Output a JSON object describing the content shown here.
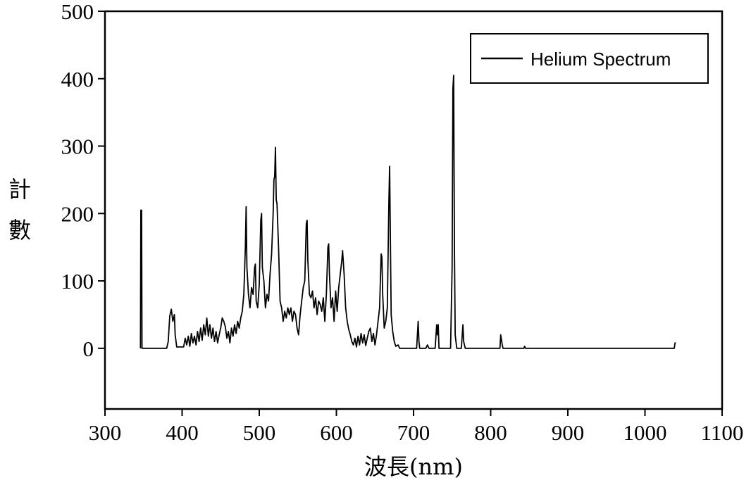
{
  "chart_data": {
    "type": "line",
    "title": "",
    "xlabel": "波長(nm)",
    "ylabel": "計數",
    "xlim": [
      300,
      1100
    ],
    "ylim": [
      -90,
      500
    ],
    "xticks": [
      300,
      400,
      500,
      600,
      700,
      800,
      900,
      1000,
      1100
    ],
    "xtick_labels": [
      "300",
      "400",
      "500",
      "600",
      "700",
      "800",
      "900",
      "1000",
      "1100"
    ],
    "yticks": [
      0,
      100,
      200,
      300,
      400,
      500
    ],
    "ytick_labels": [
      "0",
      "100",
      "200",
      "300",
      "400",
      "500"
    ],
    "grid": false,
    "legend_position": "top-right",
    "series": [
      {
        "name": "Helium Spectrum",
        "color": "#000000",
        "points": [
          [
            346,
            0
          ],
          [
            346.5,
            205
          ],
          [
            347.5,
            205
          ],
          [
            348,
            0
          ],
          [
            380,
            0
          ],
          [
            382,
            10
          ],
          [
            384,
            48
          ],
          [
            386,
            58
          ],
          [
            388,
            40
          ],
          [
            390,
            50
          ],
          [
            391,
            20
          ],
          [
            393,
            2
          ],
          [
            402,
            2
          ],
          [
            404,
            15
          ],
          [
            406,
            5
          ],
          [
            408,
            18
          ],
          [
            410,
            3
          ],
          [
            412,
            22
          ],
          [
            414,
            8
          ],
          [
            416,
            18
          ],
          [
            418,
            5
          ],
          [
            420,
            25
          ],
          [
            422,
            10
          ],
          [
            424,
            30
          ],
          [
            426,
            12
          ],
          [
            428,
            35
          ],
          [
            430,
            20
          ],
          [
            432,
            45
          ],
          [
            434,
            18
          ],
          [
            436,
            35
          ],
          [
            438,
            15
          ],
          [
            440,
            30
          ],
          [
            442,
            10
          ],
          [
            444,
            25
          ],
          [
            446,
            8
          ],
          [
            448,
            20
          ],
          [
            450,
            30
          ],
          [
            452,
            45
          ],
          [
            454,
            40
          ],
          [
            456,
            32
          ],
          [
            458,
            15
          ],
          [
            460,
            25
          ],
          [
            462,
            8
          ],
          [
            464,
            30
          ],
          [
            466,
            18
          ],
          [
            468,
            35
          ],
          [
            470,
            22
          ],
          [
            472,
            40
          ],
          [
            474,
            30
          ],
          [
            476,
            45
          ],
          [
            478,
            55
          ],
          [
            480,
            80
          ],
          [
            482,
            150
          ],
          [
            483,
            210
          ],
          [
            484,
            120
          ],
          [
            486,
            80
          ],
          [
            488,
            60
          ],
          [
            490,
            90
          ],
          [
            492,
            80
          ],
          [
            494,
            120
          ],
          [
            495,
            125
          ],
          [
            496,
            70
          ],
          [
            498,
            60
          ],
          [
            500,
            95
          ],
          [
            502,
            190
          ],
          [
            503,
            200
          ],
          [
            504,
            120
          ],
          [
            506,
            100
          ],
          [
            508,
            60
          ],
          [
            510,
            80
          ],
          [
            512,
            70
          ],
          [
            514,
            110
          ],
          [
            516,
            140
          ],
          [
            518,
            200
          ],
          [
            519,
            250
          ],
          [
            520,
            255
          ],
          [
            521,
            298
          ],
          [
            522,
            220
          ],
          [
            523,
            215
          ],
          [
            525,
            150
          ],
          [
            527,
            70
          ],
          [
            529,
            60
          ],
          [
            531,
            40
          ],
          [
            533,
            55
          ],
          [
            535,
            45
          ],
          [
            537,
            60
          ],
          [
            539,
            50
          ],
          [
            541,
            60
          ],
          [
            543,
            40
          ],
          [
            545,
            55
          ],
          [
            547,
            50
          ],
          [
            549,
            30
          ],
          [
            551,
            20
          ],
          [
            553,
            50
          ],
          [
            555,
            70
          ],
          [
            557,
            90
          ],
          [
            559,
            100
          ],
          [
            561,
            185
          ],
          [
            562,
            190
          ],
          [
            563,
            130
          ],
          [
            565,
            80
          ],
          [
            567,
            75
          ],
          [
            569,
            85
          ],
          [
            571,
            60
          ],
          [
            573,
            75
          ],
          [
            575,
            50
          ],
          [
            577,
            70
          ],
          [
            579,
            65
          ],
          [
            581,
            55
          ],
          [
            583,
            75
          ],
          [
            585,
            40
          ],
          [
            587,
            80
          ],
          [
            589,
            150
          ],
          [
            590,
            155
          ],
          [
            591,
            110
          ],
          [
            593,
            60
          ],
          [
            595,
            75
          ],
          [
            597,
            40
          ],
          [
            599,
            85
          ],
          [
            601,
            55
          ],
          [
            603,
            90
          ],
          [
            605,
            110
          ],
          [
            607,
            130
          ],
          [
            608,
            145
          ],
          [
            610,
            110
          ],
          [
            612,
            60
          ],
          [
            614,
            40
          ],
          [
            616,
            28
          ],
          [
            618,
            20
          ],
          [
            620,
            10
          ],
          [
            622,
            5
          ],
          [
            624,
            15
          ],
          [
            626,
            2
          ],
          [
            628,
            18
          ],
          [
            630,
            5
          ],
          [
            632,
            22
          ],
          [
            634,
            8
          ],
          [
            636,
            20
          ],
          [
            638,
            4
          ],
          [
            640,
            15
          ],
          [
            642,
            25
          ],
          [
            644,
            30
          ],
          [
            646,
            10
          ],
          [
            648,
            22
          ],
          [
            650,
            5
          ],
          [
            652,
            20
          ],
          [
            654,
            40
          ],
          [
            656,
            60
          ],
          [
            658,
            140
          ],
          [
            659,
            135
          ],
          [
            660,
            80
          ],
          [
            662,
            30
          ],
          [
            664,
            40
          ],
          [
            666,
            60
          ],
          [
            668,
            215
          ],
          [
            669,
            270
          ],
          [
            670,
            160
          ],
          [
            671,
            50
          ],
          [
            673,
            25
          ],
          [
            675,
            10
          ],
          [
            677,
            3
          ],
          [
            680,
            5
          ],
          [
            682,
            0
          ],
          [
            704,
            0
          ],
          [
            706,
            40
          ],
          [
            707,
            10
          ],
          [
            708,
            0
          ],
          [
            716,
            0
          ],
          [
            718,
            5
          ],
          [
            720,
            0
          ],
          [
            728,
            0
          ],
          [
            730,
            35
          ],
          [
            731,
            20
          ],
          [
            732,
            35
          ],
          [
            733,
            0
          ],
          [
            748,
            0
          ],
          [
            750,
            120
          ],
          [
            751,
            385
          ],
          [
            752,
            405
          ],
          [
            753,
            150
          ],
          [
            754,
            20
          ],
          [
            756,
            0
          ],
          [
            762,
            0
          ],
          [
            764,
            35
          ],
          [
            765,
            10
          ],
          [
            767,
            0
          ],
          [
            812,
            0
          ],
          [
            813,
            20
          ],
          [
            815,
            5
          ],
          [
            816,
            0
          ],
          [
            843,
            0
          ],
          [
            844,
            3
          ],
          [
            845,
            0
          ],
          [
            1038,
            0
          ],
          [
            1039,
            8
          ],
          [
            1040,
            8
          ]
        ]
      }
    ]
  }
}
